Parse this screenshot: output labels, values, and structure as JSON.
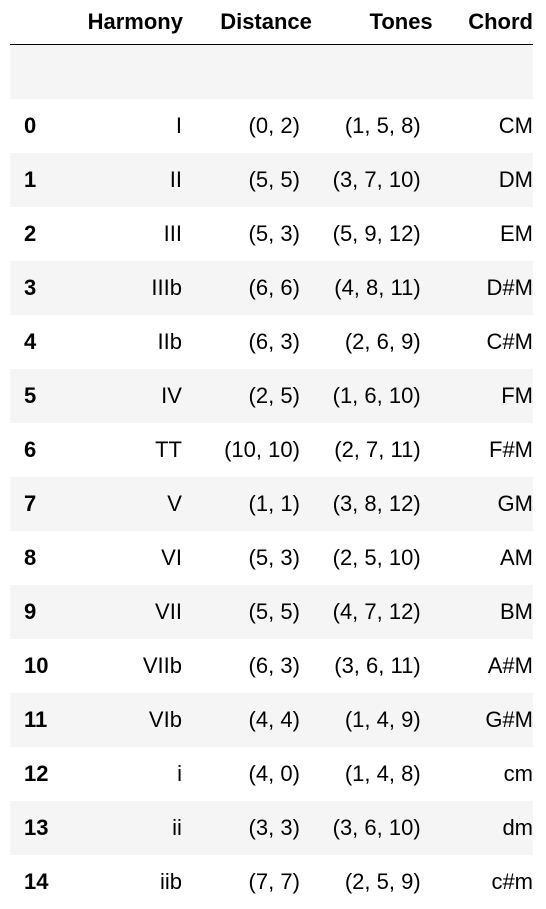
{
  "columns": [
    "",
    "Harmony",
    "Distance",
    "Tones",
    "Chord"
  ],
  "rows": [
    {
      "index": "0",
      "harmony": "I",
      "distance": "(0, 2)",
      "tones": "(1, 5, 8)",
      "chord": "CM"
    },
    {
      "index": "1",
      "harmony": "II",
      "distance": "(5, 5)",
      "tones": "(3, 7, 10)",
      "chord": "DM"
    },
    {
      "index": "2",
      "harmony": "III",
      "distance": "(5, 3)",
      "tones": "(5, 9, 12)",
      "chord": "EM"
    },
    {
      "index": "3",
      "harmony": "IIIb",
      "distance": "(6, 6)",
      "tones": "(4, 8, 11)",
      "chord": "D#M"
    },
    {
      "index": "4",
      "harmony": "IIb",
      "distance": "(6, 3)",
      "tones": "(2, 6, 9)",
      "chord": "C#M"
    },
    {
      "index": "5",
      "harmony": "IV",
      "distance": "(2, 5)",
      "tones": "(1, 6, 10)",
      "chord": "FM"
    },
    {
      "index": "6",
      "harmony": "TT",
      "distance": "(10, 10)",
      "tones": "(2, 7, 11)",
      "chord": "F#M"
    },
    {
      "index": "7",
      "harmony": "V",
      "distance": "(1, 1)",
      "tones": "(3, 8, 12)",
      "chord": "GM"
    },
    {
      "index": "8",
      "harmony": "VI",
      "distance": "(5, 3)",
      "tones": "(2, 5, 10)",
      "chord": "AM"
    },
    {
      "index": "9",
      "harmony": "VII",
      "distance": "(5, 5)",
      "tones": "(4, 7, 12)",
      "chord": "BM"
    },
    {
      "index": "10",
      "harmony": "VIIb",
      "distance": "(6, 3)",
      "tones": "(3, 6, 11)",
      "chord": "A#M"
    },
    {
      "index": "11",
      "harmony": "VIb",
      "distance": "(4, 4)",
      "tones": "(1, 4, 9)",
      "chord": "G#M"
    },
    {
      "index": "12",
      "harmony": "i",
      "distance": "(4, 0)",
      "tones": "(1, 4, 8)",
      "chord": "cm"
    },
    {
      "index": "13",
      "harmony": "ii",
      "distance": "(3, 3)",
      "tones": "(3, 6, 10)",
      "chord": "dm"
    },
    {
      "index": "14",
      "harmony": "iib",
      "distance": "(7, 7)",
      "tones": "(2, 5, 9)",
      "chord": "c#m"
    }
  ]
}
